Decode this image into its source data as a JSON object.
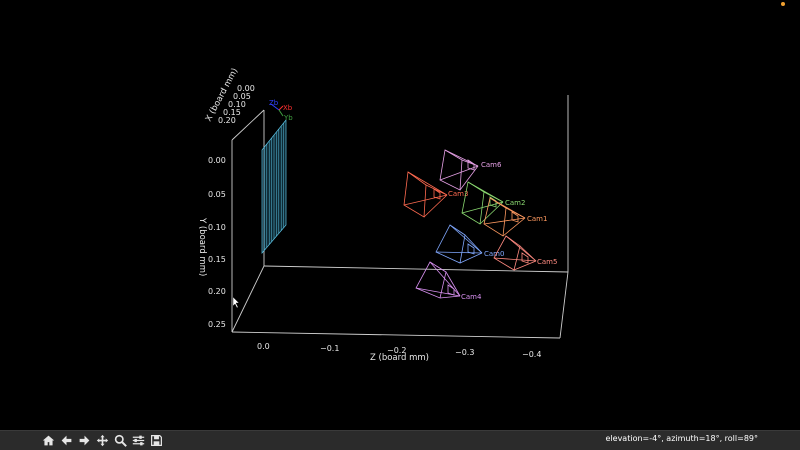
{
  "plot": {
    "x_axis_label": "X (board mm)",
    "y_axis_label": "Y (board mm)",
    "z_axis_label": "Z (board mm)",
    "x_ticks": [
      "0.00",
      "0.05",
      "0.10",
      "0.15",
      "0.20"
    ],
    "y_ticks": [
      "0.00",
      "0.05",
      "0.10",
      "0.15",
      "0.20",
      "0.25"
    ],
    "z_ticks": [
      "0.0",
      "−0.1",
      "−0.2",
      "−0.3",
      "−0.4"
    ],
    "board_axes": [
      {
        "label": "Zb",
        "color": "#3040ff"
      },
      {
        "label": "Xb",
        "color": "#ff3030"
      },
      {
        "label": "Yb",
        "color": "#40a040"
      }
    ],
    "board_color": "#5bc4e6",
    "cameras": [
      {
        "label": "Cam6",
        "color": "#e6a0e6"
      },
      {
        "label": "Cam3",
        "color": "#ff6a50"
      },
      {
        "label": "Cam2",
        "color": "#8ad870"
      },
      {
        "label": "Cam1",
        "color": "#ff9a60"
      },
      {
        "label": "Cam0",
        "color": "#80a8ff"
      },
      {
        "label": "Cam5",
        "color": "#ff8a80"
      },
      {
        "label": "Cam4",
        "color": "#d890f0"
      }
    ]
  },
  "toolbar": {
    "buttons": [
      {
        "name": "home",
        "icon": "home-icon"
      },
      {
        "name": "back",
        "icon": "arrow-left-icon"
      },
      {
        "name": "forward",
        "icon": "arrow-right-icon"
      },
      {
        "name": "pan",
        "icon": "move-icon"
      },
      {
        "name": "zoom",
        "icon": "zoom-icon"
      },
      {
        "name": "configure",
        "icon": "sliders-icon"
      },
      {
        "name": "save",
        "icon": "save-icon"
      }
    ],
    "status": "elevation=-4°, azimuth=18°, roll=89°"
  }
}
